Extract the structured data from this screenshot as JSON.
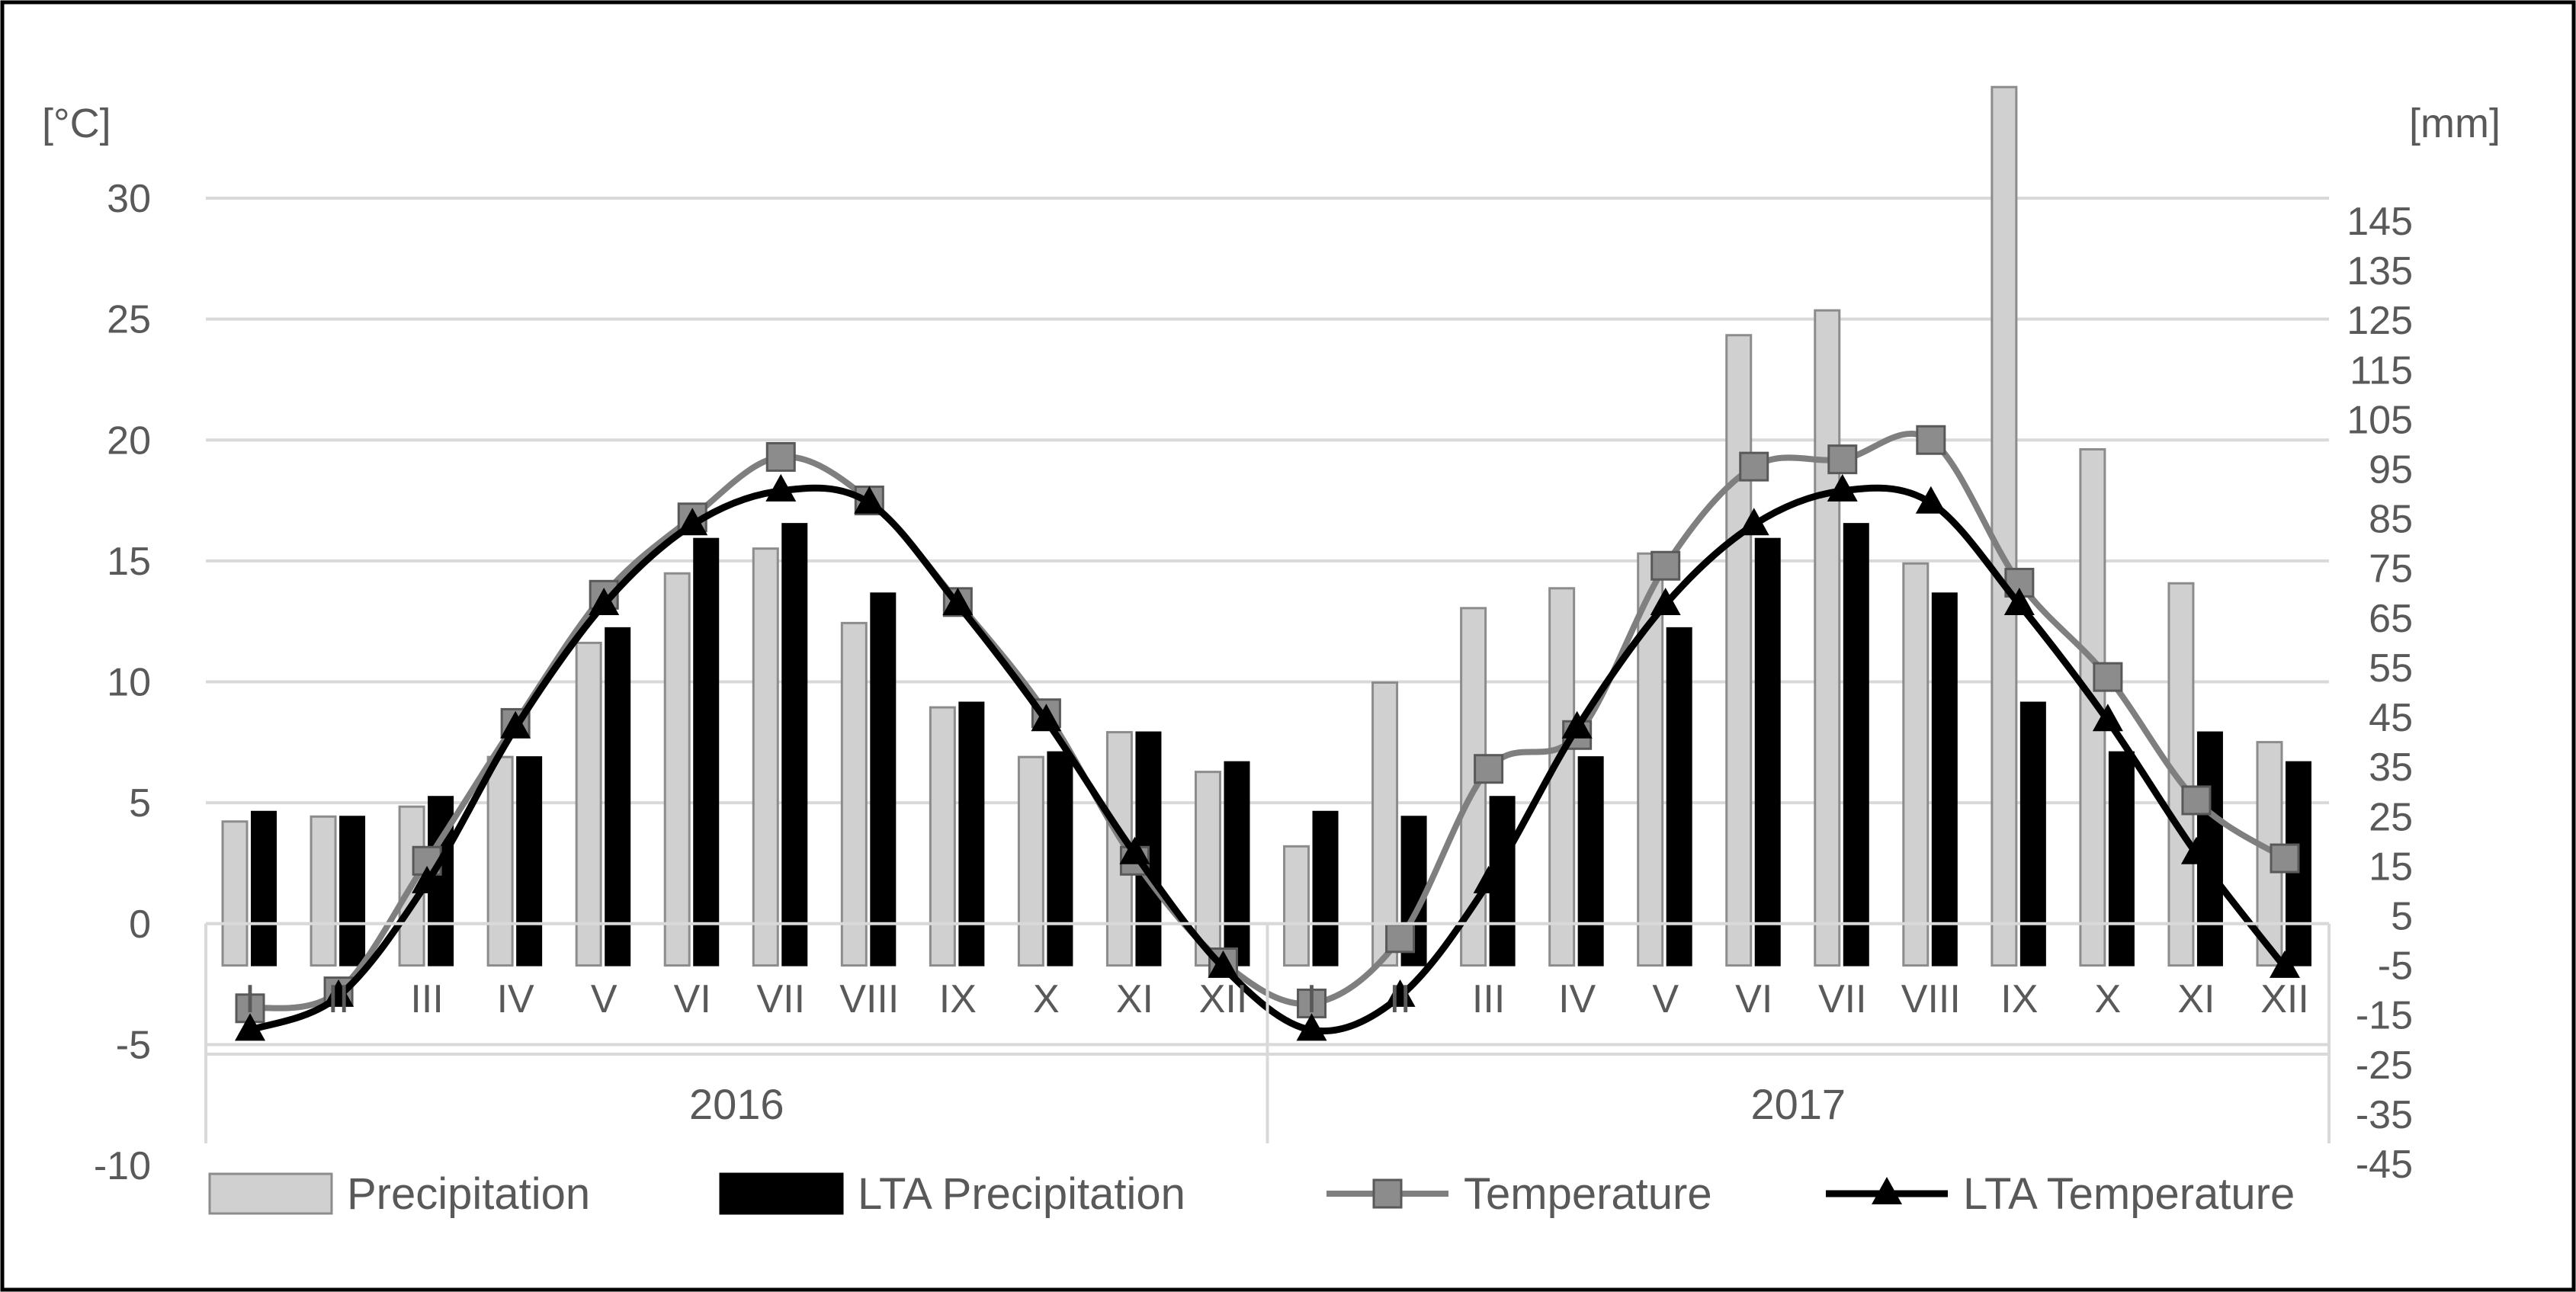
{
  "chart_data": {
    "type": "bar+line",
    "title": "",
    "left_axis": {
      "unit_label": "[°C]",
      "min": -10,
      "max": 30,
      "step": 5,
      "ticks": [
        "30",
        "25",
        "20",
        "15",
        "10",
        "5",
        "0",
        "-5",
        "-10"
      ]
    },
    "right_axis": {
      "unit_label": "[mm]",
      "ticks": [
        "145",
        "135",
        "125",
        "115",
        "105",
        "95",
        "85",
        "75",
        "65",
        "55",
        "45",
        "35",
        "25",
        "15",
        "5",
        "-5",
        "-15",
        "-25",
        "-35",
        "-45"
      ]
    },
    "years": [
      "2016",
      "2017"
    ],
    "months": [
      "I",
      "II",
      "III",
      "IV",
      "V",
      "VI",
      "VII",
      "VIII",
      "IX",
      "X",
      "XI",
      "XII"
    ],
    "series": [
      {
        "name": "Precipitation",
        "kind": "bar",
        "axis": "mm",
        "color": "#d0d0d0",
        "values": [
          24,
          25,
          27,
          37,
          60,
          74,
          79,
          64,
          47,
          37,
          42,
          34,
          19,
          52,
          67,
          71,
          78,
          122,
          127,
          76,
          172,
          99,
          72,
          40
        ]
      },
      {
        "name": "LTA Precipitation",
        "kind": "bar",
        "axis": "mm",
        "color": "#000000",
        "values": [
          26,
          25,
          29,
          37,
          63,
          81,
          84,
          70,
          48,
          38,
          42,
          36,
          26,
          25,
          29,
          37,
          63,
          81,
          84,
          70,
          48,
          38,
          42,
          36
        ]
      },
      {
        "name": "Temperature",
        "kind": "line",
        "axis": "°C",
        "color": "#7f7f7f",
        "values": [
          -3.5,
          -2.8,
          2.6,
          8.3,
          13.6,
          16.8,
          19.3,
          17.5,
          13.3,
          8.7,
          2.6,
          -1.6,
          -3.3,
          -0.6,
          6.4,
          7.8,
          14.8,
          18.9,
          19.2,
          20.0,
          14.1,
          10.2,
          5.1,
          2.7
        ]
      },
      {
        "name": "LTA Temperature",
        "kind": "line",
        "axis": "°C",
        "color": "#000000",
        "values": [
          -4.4,
          -3.0,
          1.7,
          8.1,
          13.2,
          16.5,
          17.9,
          17.4,
          13.2,
          8.4,
          2.9,
          -1.8,
          -4.4,
          -3.0,
          1.7,
          8.1,
          13.2,
          16.5,
          17.9,
          17.4,
          13.2,
          8.4,
          2.9,
          -1.8
        ]
      }
    ],
    "legend": [
      "Precipitation",
      "LTA Precipitation",
      "Temperature",
      "LTA Temperature"
    ],
    "legend_position": "bottom"
  }
}
